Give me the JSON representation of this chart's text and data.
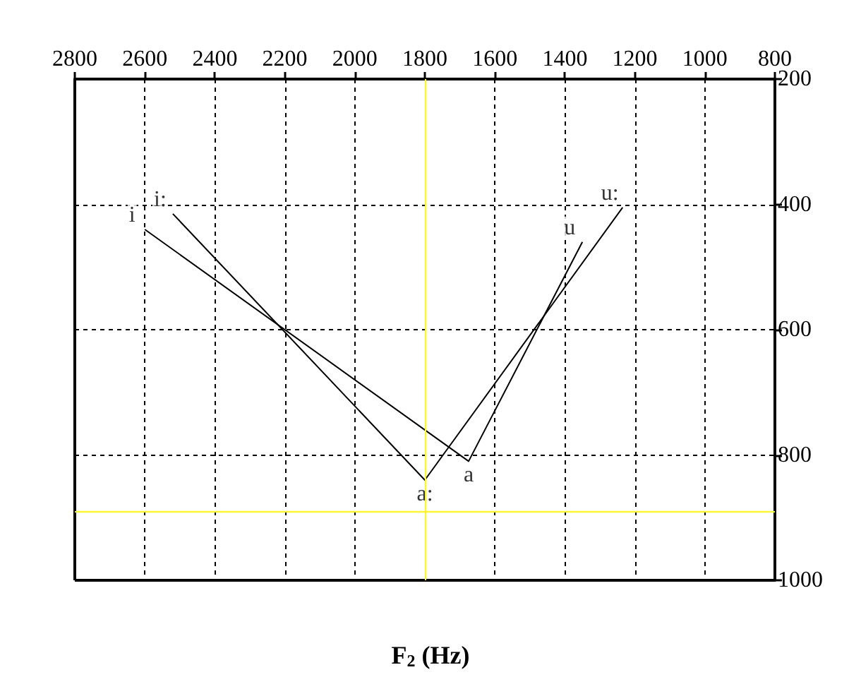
{
  "chart_data": {
    "type": "line",
    "xlabel": "F$_{2}$ (Hz)",
    "xlim": [
      2800,
      800
    ],
    "xticks": [
      2800,
      2600,
      2400,
      2200,
      2000,
      1800,
      1600,
      1400,
      1200,
      1000,
      800
    ],
    "ylim": [
      1000,
      200
    ],
    "yticks": [
      200,
      400,
      600,
      800,
      1000
    ],
    "grid": true,
    "marker": "none",
    "series": [
      {
        "color": "#000000",
        "x": [
          2600,
          1675,
          1350
        ],
        "values": [
          440,
          810,
          460
        ]
      },
      {
        "color": "#000000",
        "x": [
          2520,
          1800,
          1235
        ],
        "values": [
          415,
          840,
          405
        ]
      }
    ],
    "annotations": [
      {
        "text": "i",
        "x": 2600,
        "y": 440
      },
      {
        "text": "a",
        "x": 1675,
        "y": 810
      },
      {
        "text": "u",
        "x": 1350,
        "y": 460
      },
      {
        "text": "i:",
        "x": 2520,
        "y": 415
      },
      {
        "text": "a:",
        "x": 1800,
        "y": 840
      },
      {
        "text": "u:",
        "x": 1235,
        "y": 405
      }
    ],
    "ref_lines": [
      {
        "axis": "x",
        "value": 1800,
        "color": "#ffff00"
      },
      {
        "axis": "y",
        "value": 890,
        "color": "#ffff00"
      }
    ]
  }
}
